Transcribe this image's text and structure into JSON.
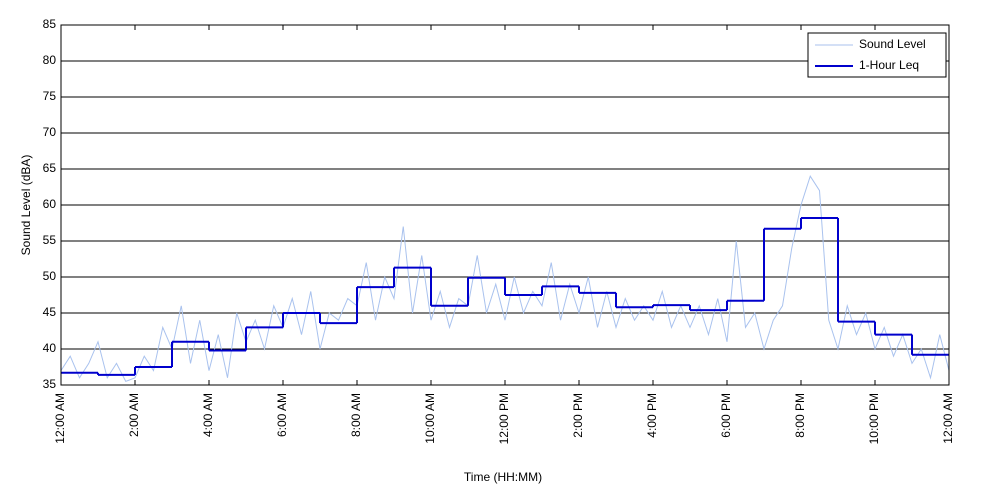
{
  "chart_data": {
    "type": "line",
    "xlabel": "Time (HH:MM)",
    "ylabel": "Sound Level (dBA)",
    "xlim": [
      0,
      24
    ],
    "ylim": [
      35,
      85
    ],
    "xticks": [
      {
        "value": 0,
        "label": "12:00 AM"
      },
      {
        "value": 2,
        "label": "2:00 AM"
      },
      {
        "value": 4,
        "label": "4:00 AM"
      },
      {
        "value": 6,
        "label": "6:00 AM"
      },
      {
        "value": 8,
        "label": "8:00 AM"
      },
      {
        "value": 10,
        "label": "10:00 AM"
      },
      {
        "value": 12,
        "label": "12:00 PM"
      },
      {
        "value": 14,
        "label": "2:00 PM"
      },
      {
        "value": 16,
        "label": "4:00 PM"
      },
      {
        "value": 18,
        "label": "6:00 PM"
      },
      {
        "value": 20,
        "label": "8:00 PM"
      },
      {
        "value": 22,
        "label": "10:00 PM"
      },
      {
        "value": 24,
        "label": "12:00 AM"
      }
    ],
    "yticks": [
      35,
      40,
      45,
      50,
      55,
      60,
      65,
      70,
      75,
      80,
      85
    ],
    "grid": true,
    "legend": "upper right",
    "series": [
      {
        "name": "Sound Level",
        "color": "#a9c2ee",
        "style": "line",
        "x": [
          0,
          0.25,
          0.5,
          0.75,
          1,
          1.25,
          1.5,
          1.75,
          2,
          2.25,
          2.5,
          2.75,
          3,
          3.25,
          3.5,
          3.75,
          4,
          4.25,
          4.5,
          4.75,
          5,
          5.25,
          5.5,
          5.75,
          6,
          6.25,
          6.5,
          6.75,
          7,
          7.25,
          7.5,
          7.75,
          8,
          8.25,
          8.5,
          8.75,
          9,
          9.25,
          9.5,
          9.75,
          10,
          10.25,
          10.5,
          10.75,
          11,
          11.25,
          11.5,
          11.75,
          12,
          12.25,
          12.5,
          12.75,
          13,
          13.25,
          13.5,
          13.75,
          14,
          14.25,
          14.5,
          14.75,
          15,
          15.25,
          15.5,
          15.75,
          16,
          16.25,
          16.5,
          16.75,
          17,
          17.25,
          17.5,
          17.75,
          18,
          18.25,
          18.5,
          18.75,
          19,
          19.25,
          19.5,
          19.75,
          20,
          20.25,
          20.5,
          20.75,
          21,
          21.25,
          21.5,
          21.75,
          22,
          22.25,
          22.5,
          22.75,
          23,
          23.25,
          23.5,
          23.75,
          24
        ],
        "values": [
          37,
          39,
          36,
          38,
          41,
          36,
          38,
          35.5,
          36,
          39,
          37,
          43,
          40,
          46,
          38,
          44,
          37,
          42,
          36,
          45,
          41,
          44,
          40,
          46,
          43,
          47,
          42,
          48,
          40,
          45,
          44,
          47,
          46,
          52,
          44,
          50,
          47,
          57,
          45,
          53,
          44,
          48,
          43,
          47,
          46,
          53,
          45,
          49,
          44,
          50,
          45,
          48,
          46,
          52,
          44,
          49,
          45,
          50,
          43,
          48,
          43,
          47,
          44,
          46,
          44,
          48,
          43,
          46,
          43,
          46,
          42,
          47,
          41,
          55,
          43,
          45,
          40,
          44,
          46,
          54,
          60,
          64,
          62,
          44,
          40,
          46,
          42,
          45,
          40,
          43,
          39,
          42,
          38,
          40,
          36,
          42,
          37
        ]
      },
      {
        "name": "1-Hour Leq",
        "color": "#0000cc",
        "style": "step",
        "x": [
          0,
          1,
          2,
          3,
          4,
          5,
          6,
          7,
          8,
          9,
          10,
          11,
          12,
          13,
          14,
          15,
          16,
          17,
          18,
          19,
          20,
          21,
          22,
          23
        ],
        "values": [
          36.7,
          36.4,
          37.5,
          41.0,
          39.8,
          43.0,
          45.0,
          43.6,
          48.6,
          51.3,
          46.0,
          49.9,
          47.5,
          48.7,
          47.8,
          45.8,
          46.1,
          45.4,
          46.7,
          56.7,
          58.2,
          43.8,
          42.0,
          39.2
        ]
      }
    ]
  }
}
